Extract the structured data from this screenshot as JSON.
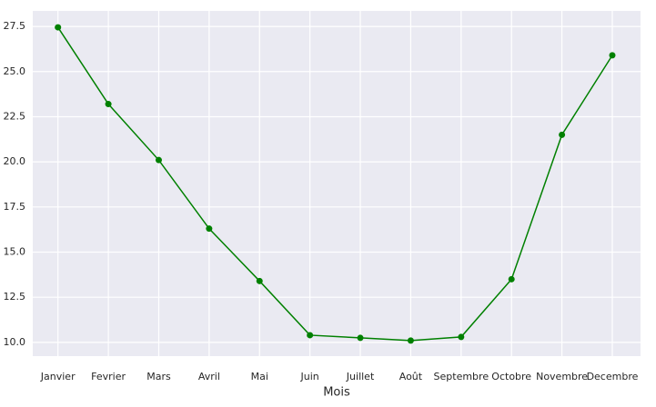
{
  "chart_data": {
    "type": "line",
    "x_label": "Mois",
    "categories": [
      "Janvier",
      "Fevrier",
      "Mars",
      "Avril",
      "Mai",
      "Juin",
      "Juillet",
      "Août",
      "Septembre",
      "Octobre",
      "Novembre",
      "Decembre"
    ],
    "values": [
      27.45,
      23.2,
      20.1,
      16.3,
      13.4,
      10.4,
      10.25,
      10.1,
      10.3,
      13.5,
      21.5,
      25.9
    ],
    "color": "#008000",
    "ylim": [
      9.24,
      28.36
    ],
    "yticks": [
      {
        "value": 10,
        "label": "10.0"
      },
      {
        "value": 12.5,
        "label": "12.5"
      },
      {
        "value": 15,
        "label": "15.0"
      },
      {
        "value": 17.5,
        "label": "17.5"
      },
      {
        "value": 20,
        "label": "20.0"
      },
      {
        "value": 22.5,
        "label": "22.5"
      },
      {
        "value": 25,
        "label": "25.0"
      },
      {
        "value": 27.5,
        "label": "27.5"
      }
    ],
    "grid": true
  }
}
